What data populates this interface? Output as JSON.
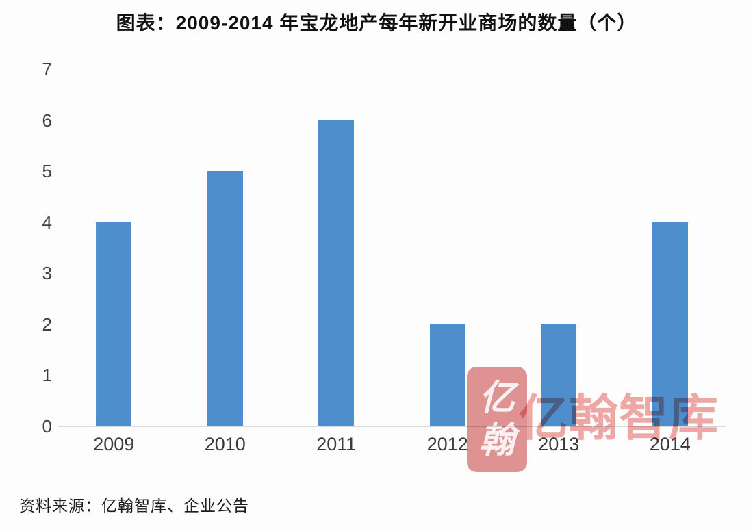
{
  "title": "图表：2009-2014 年宝龙地产每年新开业商场的数量（个）",
  "source": "资料来源：亿翰智库、企业公告",
  "watermark": {
    "text": "亿翰智库",
    "seal_chars": [
      "亿",
      "翰"
    ]
  },
  "colors": {
    "bar": "#4f8ecd",
    "axis_line": "#d9d9d9",
    "tick_label": "#3a3a3a",
    "title": "#111111",
    "watermark_pink": "#efa9a6",
    "seal_pink": "#e09392"
  },
  "chart_data": {
    "type": "bar",
    "categories": [
      "2009",
      "2010",
      "2011",
      "2012",
      "2013",
      "2014"
    ],
    "values": [
      4,
      5,
      6,
      2,
      2,
      4
    ],
    "title": "图表：2009-2014 年宝龙地产每年新开业商场的数量（个）",
    "xlabel": "",
    "ylabel": "",
    "ylim": [
      0,
      7
    ],
    "yticks": [
      0,
      1,
      2,
      3,
      4,
      5,
      6,
      7
    ],
    "grid": false,
    "legend": null
  }
}
